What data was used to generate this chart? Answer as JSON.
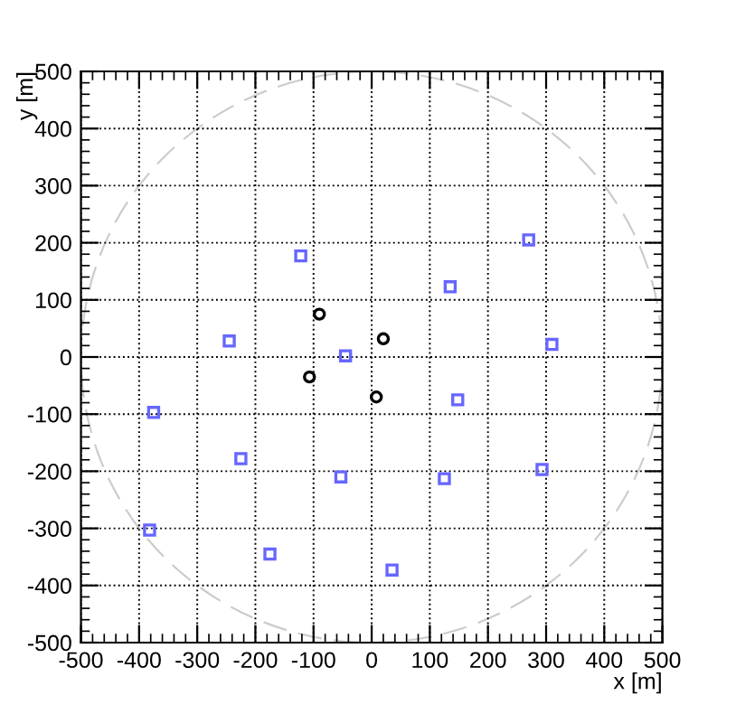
{
  "chart_data": {
    "type": "scatter",
    "xlabel": "x [m]",
    "ylabel": "y [m]",
    "xlim": [
      -500,
      500
    ],
    "ylim": [
      -500,
      500
    ],
    "xticks": [
      -500,
      -400,
      -300,
      -200,
      -100,
      0,
      100,
      200,
      300,
      400,
      500
    ],
    "yticks": [
      -500,
      -400,
      -300,
      -200,
      -100,
      0,
      100,
      200,
      300,
      400,
      500
    ],
    "grid": true,
    "series": [
      {
        "color": "#000000",
        "marker": "circle",
        "x": [
          -90,
          20,
          -107,
          8
        ],
        "values": [
          75,
          32,
          -35,
          -70
        ]
      },
      {
        "color": "#6666ff",
        "marker": "square",
        "x": [
          -122,
          -245,
          -45,
          135,
          270,
          310,
          -375,
          -225,
          -53,
          148,
          125,
          293,
          -382,
          -175,
          35
        ],
        "values": [
          177,
          28,
          2,
          123,
          205,
          22,
          -97,
          -178,
          -210,
          -75,
          -213,
          -197,
          -303,
          -345,
          -373
        ]
      }
    ]
  }
}
